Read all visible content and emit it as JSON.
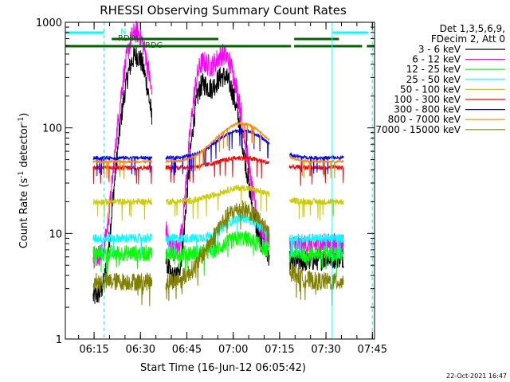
{
  "chart_data": {
    "type": "line",
    "title": "RHESSI Observing Summary Count Rates",
    "xlabel": "Start Time (16-Jun-12 06:05:42)",
    "ylabel_main": "Count Rate (s",
    "ylabel_sup": "-1",
    "ylabel_mid": " detector",
    "ylabel_sup2": "-1",
    "ylabel_end": ")",
    "yscale": "log",
    "ylim": [
      1,
      1000
    ],
    "xlim_minutes": [
      0,
      100
    ],
    "x_ticks": [
      {
        "label": "06:15",
        "m": 9.3
      },
      {
        "label": "06:30",
        "m": 24.3
      },
      {
        "label": "06:45",
        "m": 39.3
      },
      {
        "label": "07:00",
        "m": 54.3
      },
      {
        "label": "07:15",
        "m": 69.3
      },
      {
        "label": "07:30",
        "m": 84.3
      },
      {
        "label": "07:45",
        "m": 99.3
      }
    ],
    "y_ticks": [
      {
        "label": "1",
        "v": 1
      },
      {
        "label": "10",
        "v": 10
      },
      {
        "label": "100",
        "v": 100
      },
      {
        "label": "1000",
        "v": 1000
      }
    ],
    "legend_header": [
      "Det 1,3,5,6,9,",
      "FDecim 2, Att 0"
    ],
    "legend_placement": "right",
    "series": [
      {
        "name": "3 - 6 keV",
        "color": "#000000",
        "kind": "flare",
        "q1": 2.5,
        "p1": 480,
        "p2": 370,
        "q2": 6
      },
      {
        "name": "6 - 12 keV",
        "color": "#ff00ff",
        "kind": "flare",
        "q1": 6,
        "p1": 800,
        "p2": 600,
        "q2": 8
      },
      {
        "name": "12 - 25 keV",
        "color": "#00ff00",
        "kind": "flat",
        "a": 6.5,
        "b": 9,
        "noise": 0.18
      },
      {
        "name": "25 - 50 keV",
        "color": "#00ffff",
        "kind": "flat",
        "a": 9,
        "b": 14,
        "noise": 0.1
      },
      {
        "name": "50 - 100 keV",
        "color": "#cccc00",
        "kind": "orbit",
        "a": 20,
        "b": 27,
        "noise": 0.07
      },
      {
        "name": "100 - 300 keV",
        "color": "#ff0000",
        "kind": "orbit",
        "a": 42,
        "b": 52,
        "noise": 0.05
      },
      {
        "name": "300 - 800 keV",
        "color": "#0000ff",
        "kind": "orbit",
        "a": 52,
        "b": 95,
        "noise": 0.04
      },
      {
        "name": "800 - 7000 keV",
        "color": "#ff8800",
        "kind": "orbit",
        "a": 48,
        "b": 110,
        "noise": 0.03
      },
      {
        "name": "7000 - 15000 keV",
        "color": "#808000",
        "kind": "orbit",
        "a": 3.5,
        "b": 17,
        "noise": 0.2
      }
    ],
    "data_windows_minutes": [
      [
        9,
        28
      ],
      [
        32.5,
        66
      ],
      [
        72.5,
        90
      ]
    ],
    "peaks_minutes": [
      22,
      44,
      49.5
    ],
    "annotations": {
      "night_label": "N",
      "rdw_label": "RDW",
      "rdg_label": "RDG"
    },
    "timestamp": "22-Oct-2021 16:47"
  }
}
